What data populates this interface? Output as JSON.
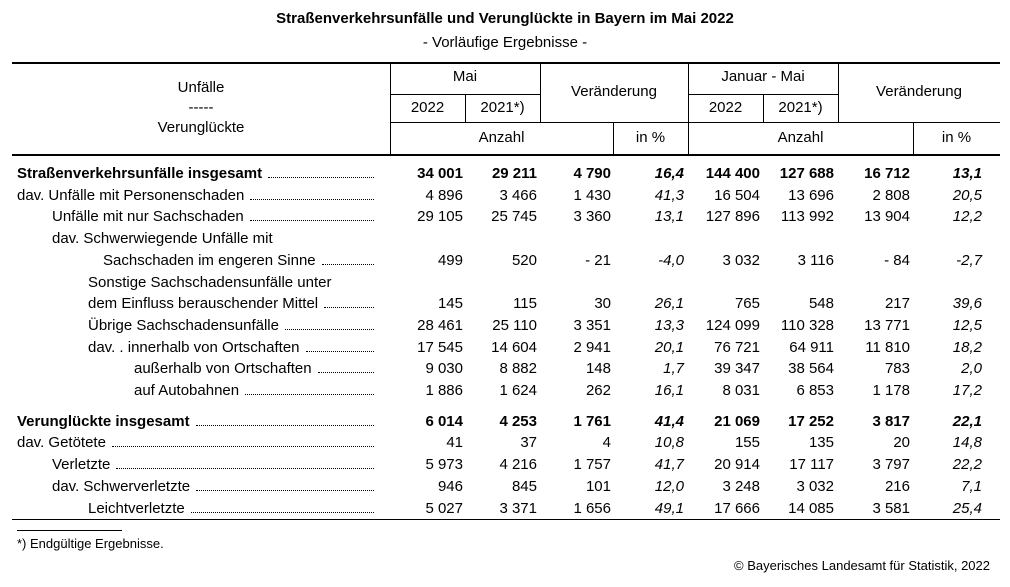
{
  "header": {
    "title": "Straßenverkehrsunfälle und Verunglückte in Bayern im Mai 2022",
    "subtitle": "- Vorläufige Ergebnisse -"
  },
  "table": {
    "head": {
      "row_label": [
        "Unfälle",
        "-----",
        "Verunglückte"
      ],
      "groups": [
        "Mai",
        "Veränderung",
        "Januar - Mai",
        "Veränderung"
      ],
      "years": [
        "2022",
        "2021*)",
        "2022",
        "2021*)"
      ],
      "units": [
        "Anzahl",
        "in %",
        "Anzahl",
        "in %"
      ]
    },
    "rows": [
      {
        "label": [
          "Straßenverkehrsunfälle insgesamt"
        ],
        "values": [
          "34 001",
          "29 211",
          "4 790",
          "16,4",
          "144 400",
          "127 688",
          "16 712",
          "13,1"
        ]
      },
      {
        "label": [
          "dav. Unfälle mit Personenschaden"
        ],
        "values": [
          "4 896",
          "3 466",
          "1 430",
          "41,3",
          "16 504",
          "13 696",
          "2 808",
          "20,5"
        ]
      },
      {
        "label": [
          "Unfälle mit nur Sachschaden"
        ],
        "values": [
          "29 105",
          "25 745",
          "3 360",
          "13,1",
          "127 896",
          "113 992",
          "13 904",
          "12,2"
        ]
      },
      {
        "label": [
          "dav. Schwerwiegende Unfälle mit",
          "Sachschaden im engeren Sinne"
        ],
        "values": [
          "499",
          "520",
          "- 21",
          "-4,0",
          "3 032",
          "3 116",
          "- 84",
          "-2,7"
        ]
      },
      {
        "label": [
          "Sonstige Sachschadensunfälle unter",
          "dem Einfluss berauschender Mittel"
        ],
        "values": [
          "145",
          "115",
          "30",
          "26,1",
          "765",
          "548",
          "217",
          "39,6"
        ]
      },
      {
        "label": [
          "Übrige Sachschadensunfälle"
        ],
        "values": [
          "28 461",
          "25 110",
          "3 351",
          "13,3",
          "124 099",
          "110 328",
          "13 771",
          "12,5"
        ]
      },
      {
        "label": [
          "dav. .  innerhalb von Ortschaften"
        ],
        "values": [
          "17 545",
          "14 604",
          "2 941",
          "20,1",
          "76 721",
          "64 911",
          "11 810",
          "18,2"
        ]
      },
      {
        "label": [
          "außerhalb von Ortschaften"
        ],
        "values": [
          "9 030",
          "8 882",
          "148",
          "1,7",
          "39 347",
          "38 564",
          "783",
          "2,0"
        ]
      },
      {
        "label": [
          "auf Autobahnen"
        ],
        "values": [
          "1 886",
          "1 624",
          "262",
          "16,1",
          "8 031",
          "6 853",
          "1 178",
          "17,2"
        ]
      },
      {
        "label": [
          "Verunglückte insgesamt"
        ],
        "values": [
          "6 014",
          "4 253",
          "1 761",
          "41,4",
          "21 069",
          "17 252",
          "3 817",
          "22,1"
        ]
      },
      {
        "label": [
          "dav. Getötete"
        ],
        "values": [
          "41",
          "37",
          "4",
          "10,8",
          "155",
          "135",
          "20",
          "14,8"
        ]
      },
      {
        "label": [
          "Verletzte"
        ],
        "values": [
          "5 973",
          "4 216",
          "1 757",
          "41,7",
          "20 914",
          "17 117",
          "3 797",
          "22,2"
        ]
      },
      {
        "label": [
          "dav. Schwerverletzte"
        ],
        "values": [
          "946",
          "845",
          "101",
          "12,0",
          "3 248",
          "3 032",
          "216",
          "7,1"
        ]
      },
      {
        "label": [
          "Leichtverletzte"
        ],
        "values": [
          "5 027",
          "3 371",
          "1 656",
          "49,1",
          "17 666",
          "14 085",
          "3 581",
          "25,4"
        ]
      }
    ]
  },
  "footnote": "*) Endgültige Ergebnisse.",
  "source": "© Bayerisches Landesamt für Statistik, 2022"
}
